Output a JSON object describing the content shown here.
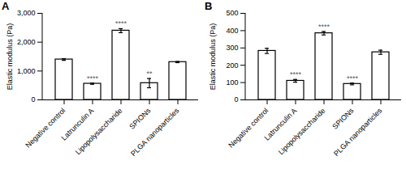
{
  "chart_data": [
    {
      "type": "bar",
      "title": "A",
      "y_label": "Elastic modulus (Pa)",
      "categories": [
        "Negative control",
        "Latrunculin A",
        "Lipopolysaccharide",
        "SPIONs",
        "PLGA nanoparticles"
      ],
      "values": [
        1400,
        560,
        2400,
        580,
        1310
      ],
      "errors": [
        30,
        20,
        70,
        160,
        20
      ],
      "annotations": [
        "",
        "****",
        "****",
        "**",
        ""
      ],
      "color": "#000000",
      "ylim": [
        0,
        3000
      ],
      "yticks": [
        0,
        {
          "value": 1000,
          "label": "1,000"
        },
        {
          "value": 2000,
          "label": "2,000"
        },
        {
          "value": 3000,
          "label": "3,000"
        }
      ]
    },
    {
      "type": "bar",
      "title": "B",
      "y_label": "Elastic modulus (Pa)",
      "categories": [
        "Negative control",
        "Latrunculin A",
        "Lipopolysaccharide",
        "SPIONs",
        "PLGA nanoparticles"
      ],
      "values": [
        283,
        110,
        385,
        92,
        275
      ],
      "errors": [
        15,
        8,
        10,
        5,
        12
      ],
      "annotations": [
        "",
        "****",
        "****",
        "****",
        ""
      ],
      "color": "#000000",
      "ylim": [
        0,
        500
      ],
      "yticks": [
        0,
        100,
        200,
        300,
        400,
        500
      ]
    }
  ]
}
